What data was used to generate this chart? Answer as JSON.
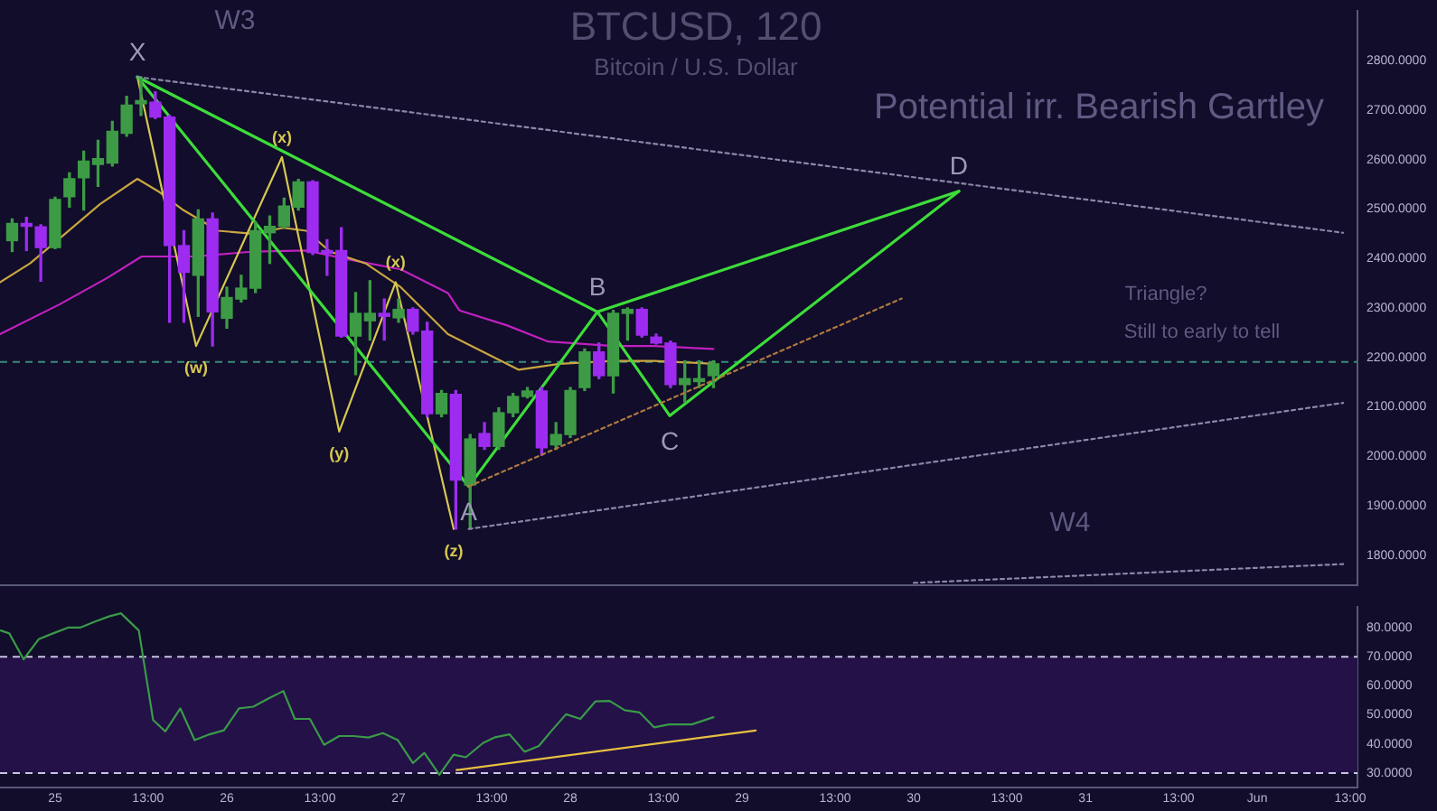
{
  "chart_data": [
    {
      "type": "candlestick",
      "title": "BTCUSD, 120",
      "subtitle": "Bitcoin / U.S. Dollar",
      "x": [
        "--05-24T18:00",
        "--05-24T20:00",
        "--05-24T22:00",
        "--05-25T00:00",
        "--05-25T02:00",
        "--05-25T04:00",
        "--05-25T06:00",
        "--05-25T08:00",
        "--05-25T10:00",
        "--05-25T12:00",
        "--05-25T14:00",
        "--05-25T16:00",
        "--05-25T18:00",
        "--05-25T20:00",
        "--05-25T22:00",
        "--05-26T00:00",
        "--05-26T02:00",
        "--05-26T04:00",
        "--05-26T06:00",
        "--05-26T08:00",
        "--05-26T10:00",
        "--05-26T12:00",
        "--05-26T14:00",
        "--05-26T16:00",
        "--05-26T18:00",
        "--05-26T20:00",
        "--05-26T22:00",
        "--05-27T00:00",
        "--05-27T02:00",
        "--05-27T04:00",
        "--05-27T06:00",
        "--05-27T08:00",
        "--05-27T10:00",
        "--05-27T12:00",
        "--05-27T14:00",
        "--05-27T16:00",
        "--05-27T18:00",
        "--05-27T20:00",
        "--05-27T22:00",
        "--05-28T00:00",
        "--05-28T02:00",
        "--05-28T04:00",
        "--05-28T06:00",
        "--05-28T08:00",
        "--05-28T10:00",
        "--05-28T12:00",
        "--05-28T14:00",
        "--05-28T16:00",
        "--05-28T18:00",
        "--05-28T20:00"
      ],
      "ohlc": [
        [
          2436,
          2480,
          2414,
          2471
        ],
        [
          2471,
          2483,
          2416,
          2465
        ],
        [
          2464,
          2468,
          2354,
          2422
        ],
        [
          2422,
          2524,
          2420,
          2519
        ],
        [
          2525,
          2573,
          2504,
          2561
        ],
        [
          2563,
          2617,
          2498,
          2597
        ],
        [
          2590,
          2639,
          2546,
          2602
        ],
        [
          2593,
          2677,
          2587,
          2657
        ],
        [
          2653,
          2728,
          2647,
          2710
        ],
        [
          2713,
          2767,
          2689,
          2719
        ],
        [
          2716,
          2737,
          2683,
          2686
        ],
        [
          2686,
          2689,
          2271,
          2426
        ],
        [
          2426,
          2456,
          2271,
          2372
        ],
        [
          2366,
          2498,
          2283,
          2480
        ],
        [
          2480,
          2492,
          2223,
          2292
        ],
        [
          2279,
          2342,
          2259,
          2321
        ],
        [
          2318,
          2366,
          2312,
          2340
        ],
        [
          2340,
          2474,
          2331,
          2456
        ],
        [
          2452,
          2486,
          2390,
          2465
        ],
        [
          2465,
          2522,
          2462,
          2506
        ],
        [
          2504,
          2560,
          2498,
          2555
        ],
        [
          2555,
          2557,
          2408,
          2412
        ],
        [
          2416,
          2438,
          2366,
          2410
        ],
        [
          2416,
          2462,
          2241,
          2243
        ],
        [
          2243,
          2331,
          2165,
          2289
        ],
        [
          2274,
          2355,
          2235,
          2289
        ],
        [
          2289,
          2318,
          2235,
          2283
        ],
        [
          2280,
          2318,
          2271,
          2297
        ],
        [
          2297,
          2300,
          2247,
          2253
        ],
        [
          2253,
          2271,
          2080,
          2086
        ],
        [
          2086,
          2133,
          2080,
          2127
        ],
        [
          2125,
          2133,
          1853,
          1952
        ],
        [
          1942,
          2044,
          1853,
          2035
        ],
        [
          2046,
          2068,
          2014,
          2020
        ],
        [
          2020,
          2098,
          2014,
          2088
        ],
        [
          2088,
          2127,
          2080,
          2121
        ],
        [
          2121,
          2139,
          2118,
          2132
        ],
        [
          2132,
          2139,
          2002,
          2017
        ],
        [
          2023,
          2068,
          2014,
          2044
        ],
        [
          2044,
          2139,
          2038,
          2133
        ],
        [
          2139,
          2217,
          2133,
          2211
        ],
        [
          2211,
          2229,
          2157,
          2163
        ],
        [
          2163,
          2295,
          2128,
          2289
        ],
        [
          2289,
          2300,
          2235,
          2297
        ],
        [
          2297,
          2300,
          2241,
          2245
        ],
        [
          2241,
          2247,
          2227,
          2229
        ],
        [
          2229,
          2233,
          2139,
          2145
        ],
        [
          2145,
          2193,
          2110,
          2157
        ],
        [
          2151,
          2193,
          2139,
          2157
        ],
        [
          2163,
          2193,
          2139,
          2187
        ]
      ],
      "colors": [
        "#3d9b45",
        "#9d2cf0",
        "#9d2cf0",
        "#3d9b45",
        "#3d9b45",
        "#3d9b45",
        "#3d9b45",
        "#3d9b45",
        "#3d9b45",
        "#3d9b45",
        "#9d2cf0",
        "#9d2cf0",
        "#9d2cf0",
        "#3d9b45",
        "#9d2cf0",
        "#3d9b45",
        "#3d9b45",
        "#3d9b45",
        "#3d9b45",
        "#3d9b45",
        "#3d9b45",
        "#9d2cf0",
        "#9d2cf0",
        "#9d2cf0",
        "#3d9b45",
        "#3d9b45",
        "#9d2cf0",
        "#3d9b45",
        "#9d2cf0",
        "#9d2cf0",
        "#3d9b45",
        "#9d2cf0",
        "#3d9b45",
        "#9d2cf0",
        "#3d9b45",
        "#3d9b45",
        "#3d9b45",
        "#9d2cf0",
        "#3d9b45",
        "#3d9b45",
        "#3d9b45",
        "#9d2cf0",
        "#3d9b45",
        "#3d9b45",
        "#9d2cf0",
        "#9d2cf0",
        "#9d2cf0",
        "#3d9b45",
        "#3d9b45",
        "#3d9b45"
      ],
      "series": [
        {
          "type": "line",
          "color": "#3ddc3a",
          "line_style": "solid",
          "x": [
            "--05-25T11:30",
            "--05-27T09:48",
            "--05-28T03:48",
            "--05-28T13:54",
            "--05-30T06:18"
          ],
          "values": [
            2767,
            1939,
            2292,
            2082,
            2536
          ]
        },
        {
          "type": "line",
          "color": "#3ddc3a",
          "line_style": "solid",
          "x": [
            "--05-25T11:30",
            "--05-28T03:48",
            "--05-30T06:18"
          ],
          "values": [
            2767,
            2292,
            2536
          ]
        },
        {
          "type": "line",
          "color": "#d6c850",
          "line_style": "solid",
          "x": [
            "--05-25T11:30",
            "--05-25T19:42",
            "--05-26T07:42",
            "--05-26T15:42",
            "--05-26T23:36",
            "--05-27T07:42"
          ],
          "values": [
            2767,
            2223,
            2605,
            2050,
            2352,
            1853
          ]
        },
        {
          "type": "line",
          "color": "#c8a640",
          "line_style": "solid",
          "x": [
            "--05-24T16:18",
            "--05-24T20:30",
            "--05-25T01:24",
            "--05-25T06:18",
            "--05-25T11:30",
            "--05-25T14:36",
            "--05-25T17:54",
            "--05-25T22:48",
            "--05-26T03:42",
            "--05-26T07:54",
            "--05-26T11:06",
            "--05-26T14:24",
            "--05-26T19:24",
            "--05-27T00:18",
            "--05-27T06:54",
            "--05-27T16:48",
            "--05-27T22:30",
            "--05-28T06:00",
            "--05-28T11:42",
            "--05-28T20:00"
          ],
          "values": [
            2352,
            2390,
            2450,
            2510,
            2561,
            2534,
            2498,
            2456,
            2450,
            2462,
            2456,
            2414,
            2390,
            2342,
            2247,
            2175,
            2187,
            2193,
            2193,
            2187
          ]
        },
        {
          "type": "line",
          "color": "#c020c0",
          "line_style": "solid",
          "x": [
            "--05-24T16:18",
            "--05-25T00:36",
            "--05-25T07:12",
            "--05-25T12:06",
            "--05-25T19:30",
            "--05-26T03:42",
            "--05-26T11:06",
            "--05-26T17:42",
            "--05-27T00:18",
            "--05-27T06:54",
            "--05-27T08:30",
            "--05-27T15:06",
            "--05-27T20:54",
            "--05-28T06:00",
            "--05-28T11:42",
            "--05-28T20:00"
          ],
          "values": [
            2247,
            2307,
            2360,
            2404,
            2404,
            2414,
            2416,
            2396,
            2378,
            2330,
            2295,
            2265,
            2232,
            2223,
            2223,
            2217
          ]
        },
        {
          "type": "line",
          "color": "#8a88a8",
          "line_style": "dotted",
          "x": [
            "--05-25T11:30",
            "--06-01T12:00"
          ],
          "values": [
            2767,
            2452
          ]
        },
        {
          "type": "line",
          "color": "#8a88a8",
          "line_style": "dotted",
          "x": [
            "--05-27T09:48",
            "--06-01T12:00"
          ],
          "values": [
            1853,
            2108
          ]
        },
        {
          "type": "line",
          "color": "#b07840",
          "line_style": "dotted",
          "x": [
            "--05-27T09:48",
            "--05-29T22:18"
          ],
          "values": [
            1939,
            2319
          ]
        },
        {
          "type": "line",
          "color": "#8a88a8",
          "line_style": "dotted",
          "x": [
            "--05-30T00:00",
            "--06-01T12:00"
          ],
          "values": [
            1744,
            1782
          ]
        }
      ],
      "marker": "none",
      "xlim": [
        "--05-24T16:18",
        "--06-01T14:00"
      ],
      "tick_labels": "y",
      "ylim": [
        1740,
        2900
      ],
      "yticks": [
        {
          "value": 1800,
          "label": "1800.0000"
        },
        {
          "value": 1900,
          "label": "1900.0000"
        },
        {
          "value": 2000,
          "label": "2000.0000"
        },
        {
          "value": 2100,
          "label": "2100.0000"
        },
        {
          "value": 2200,
          "label": "2200.0000"
        },
        {
          "value": 2300,
          "label": "2300.0000"
        },
        {
          "value": 2400,
          "label": "2400.0000"
        },
        {
          "value": 2500,
          "label": "2500.0000"
        },
        {
          "value": 2600,
          "label": "2600.0000"
        },
        {
          "value": 2700,
          "label": "2700.0000"
        },
        {
          "value": 2800,
          "label": "2800.0000"
        }
      ],
      "ref_lines": [
        {
          "axis": "y",
          "value": 2191,
          "color": "#3a8a7a",
          "line_style": "dashed"
        }
      ],
      "annotations": [
        "W3",
        "Potential irr. Bearish Gartley",
        "Triangle?",
        "Still to early to tell",
        "W4",
        {
          "text": "X",
          "x": "--05-25T11:30",
          "y": 2767
        },
        {
          "text": "(w)",
          "x": "--05-25T19:42",
          "y": 2223
        },
        {
          "text": "(x)",
          "x": "--05-26T07:42",
          "y": 2605
        },
        {
          "text": "(y)",
          "x": "--05-26T15:42",
          "y": 2050
        },
        {
          "text": "(x)",
          "x": "--05-26T23:36",
          "y": 2352
        },
        {
          "text": "(z)",
          "x": "--05-27T07:42",
          "y": 1853
        },
        {
          "text": "A",
          "x": "--05-27T09:48",
          "y": 1939
        },
        {
          "text": "B",
          "x": "--05-28T03:48",
          "y": 2292
        },
        {
          "text": "C",
          "x": "--05-28T13:54",
          "y": 2082
        },
        {
          "text": "D",
          "x": "--05-30T06:18",
          "y": 2536
        }
      ]
    },
    {
      "type": "line",
      "series": [
        {
          "color": "#3a9a48",
          "line_style": "solid",
          "x": [
            "--05-24T16:24",
            "--05-24T17:36",
            "--05-24T19:36",
            "--05-24T21:42",
            "--05-24T23:42",
            "--05-25T01:48",
            "--05-25T03:30",
            "--05-25T05:30",
            "--05-25T07:36",
            "--05-25T09:12",
            "--05-25T11:42",
            "--05-25T13:42",
            "--05-25T15:24",
            "--05-25T17:30",
            "--05-25T19:30",
            "--05-25T21:36",
            "--05-25T23:36",
            "--05-26T01:42",
            "--05-26T03:42",
            "--05-26T05:48",
            "--05-26T07:54",
            "--05-26T09:30",
            "--05-26T11:36",
            "--05-26T13:36",
            "--05-26T15:42",
            "--05-26T17:42",
            "--05-26T19:48",
            "--05-26T21:48",
            "--05-26T23:54",
            "--05-27T02:00",
            "--05-27T03:36",
            "--05-27T05:42",
            "--05-27T07:42",
            "--05-27T09:24",
            "--05-27T11:48",
            "--05-27T13:30",
            "--05-27T15:30",
            "--05-27T17:36",
            "--05-27T19:36",
            "--05-27T21:18",
            "--05-27T23:24",
            "--05-28T01:24",
            "--05-28T03:30",
            "--05-28T05:30",
            "--05-28T07:36",
            "--05-28T09:42",
            "--05-28T11:42",
            "--05-28T13:48",
            "--05-28T15:48",
            "--05-28T17:00",
            "--05-28T20:00"
          ],
          "values": [
            79.0,
            78.0,
            69.1,
            76.0,
            78.0,
            80.0,
            80.0,
            82.0,
            83.9,
            84.9,
            79.0,
            48.2,
            44.3,
            52.2,
            41.3,
            43.3,
            44.7,
            52.2,
            52.8,
            55.6,
            58.2,
            48.6,
            48.6,
            39.7,
            42.7,
            42.7,
            42.2,
            43.7,
            41.3,
            33.4,
            36.9,
            29.4,
            36.3,
            35.4,
            40.3,
            42.3,
            43.3,
            37.3,
            39.3,
            44.3,
            50.2,
            48.6,
            54.6,
            54.8,
            51.6,
            50.8,
            45.7,
            46.7,
            46.7,
            46.7,
            49.2
          ]
        },
        {
          "color": "#e8c040",
          "line_style": "solid",
          "x": [
            "--05-27T08:06",
            "--05-29T01:54"
          ],
          "values": [
            31.0,
            44.6
          ]
        }
      ],
      "marker": "none",
      "xlim": [
        "--05-24T16:18",
        "--06-01T14:00"
      ],
      "xticks": [
        {
          "value": "--05-25",
          "label": "25"
        },
        {
          "value": "--05-25T13:00",
          "label": "13:00"
        },
        {
          "value": "--05-26",
          "label": "26"
        },
        {
          "value": "--05-26T13:00",
          "label": "13:00"
        },
        {
          "value": "--05-27",
          "label": "27"
        },
        {
          "value": "--05-27T13:00",
          "label": "13:00"
        },
        {
          "value": "--05-28",
          "label": "28"
        },
        {
          "value": "--05-28T13:00",
          "label": "13:00"
        },
        {
          "value": "--05-29",
          "label": "29"
        },
        {
          "value": "--05-29T13:00",
          "label": "13:00"
        },
        {
          "value": "--05-30",
          "label": "30"
        },
        {
          "value": "--05-30T13:00",
          "label": "13:00"
        },
        {
          "value": "--05-31",
          "label": "31"
        },
        {
          "value": "--05-31T13:00",
          "label": "13:00"
        },
        {
          "value": "--06-01",
          "label": "Jun"
        },
        {
          "value": "--06-01T13:00",
          "label": "13:00"
        }
      ],
      "ylim": [
        25,
        87
      ],
      "yticks": [
        {
          "value": 30,
          "label": "30.0000"
        },
        {
          "value": 40,
          "label": "40.0000"
        },
        {
          "value": 50,
          "label": "50.0000"
        },
        {
          "value": 60,
          "label": "60.0000"
        },
        {
          "value": 70,
          "label": "70.0000"
        },
        {
          "value": 80,
          "label": "80.0000"
        }
      ],
      "ref_lines": [
        {
          "axis": "y",
          "value": 70,
          "color": "#c8c4e0",
          "line_style": "dashed"
        },
        {
          "axis": "y",
          "value": 30,
          "color": "#c8c4e0",
          "line_style": "dashed"
        }
      ],
      "bands": [
        {
          "axis": "y",
          "from": 30,
          "to": 70,
          "color": "#231148"
        }
      ]
    }
  ]
}
